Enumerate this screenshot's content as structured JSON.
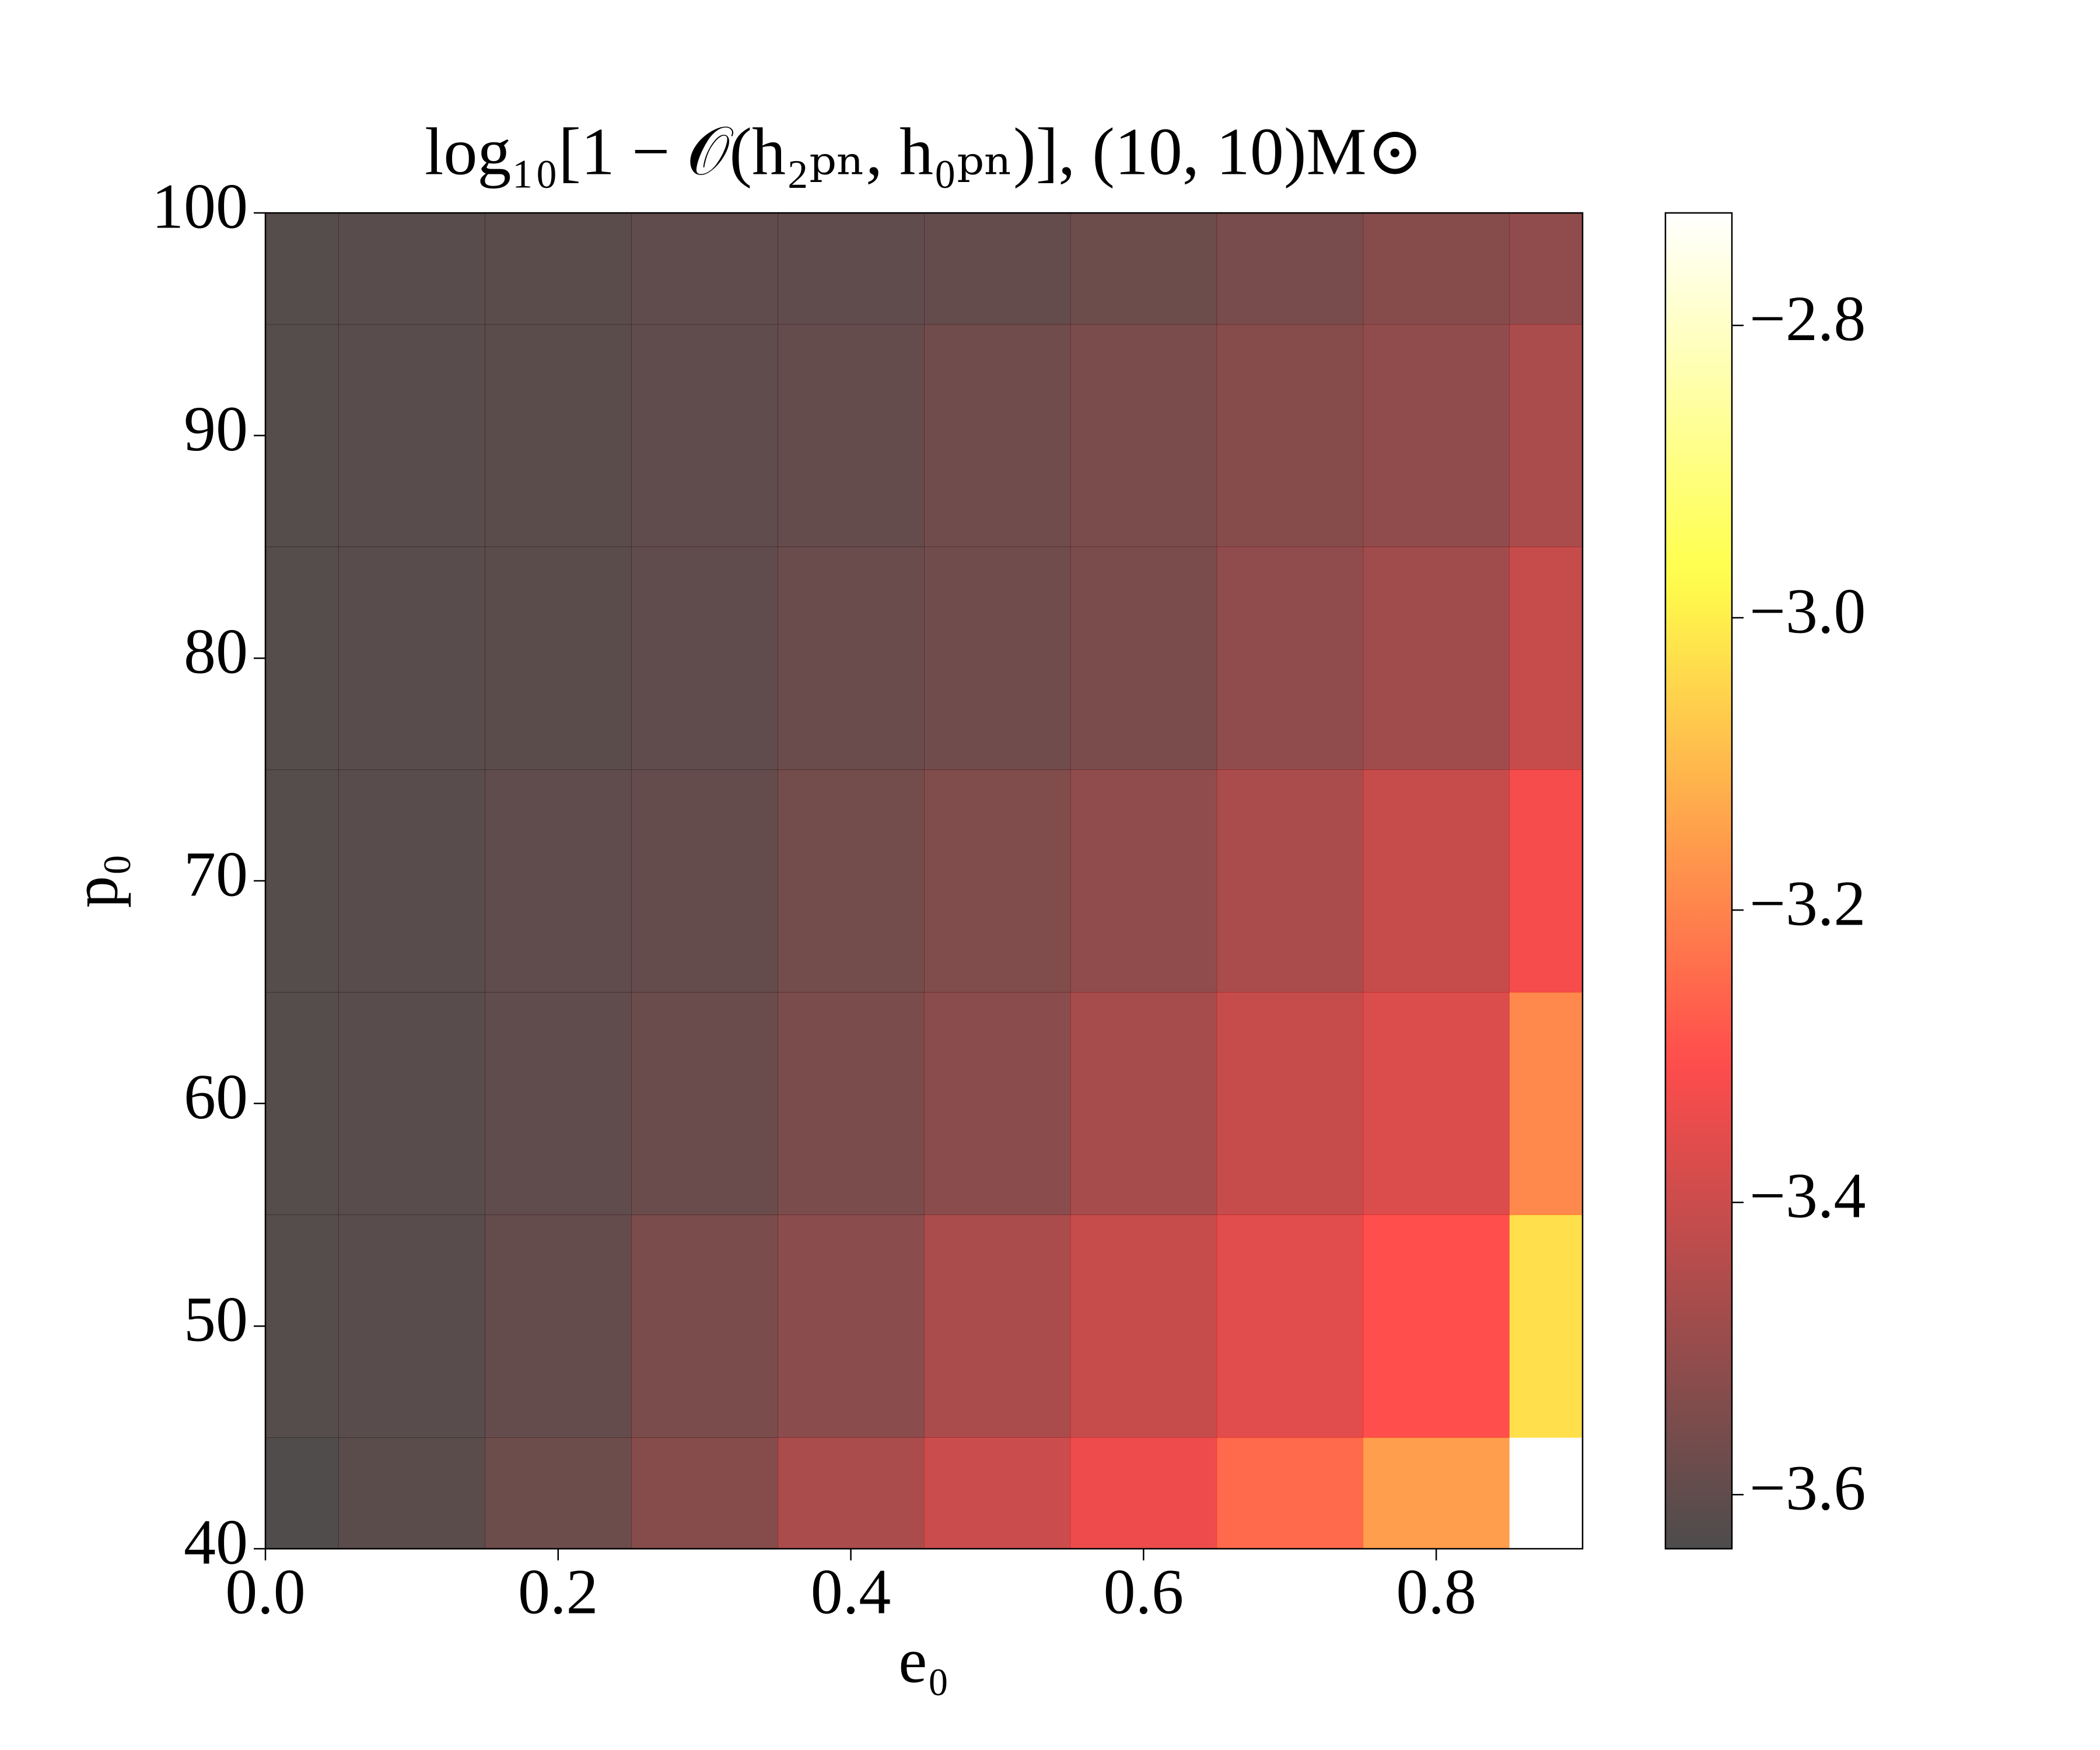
{
  "chart_data": {
    "type": "heatmap",
    "title": "log₁₀[1 − 𝒪(h₂ₚₙ, h₀ₚₙ)], (10, 10)M⊙",
    "xlabel": "e₀",
    "ylabel": "p₀",
    "x": [
      0,
      0.1,
      0.2,
      0.3,
      0.4,
      0.5,
      0.6,
      0.7,
      0.8,
      0.9
    ],
    "y": [
      40,
      50,
      60,
      70,
      80,
      90,
      100
    ],
    "z": [
      [
        -3.63,
        -3.61,
        -3.575,
        -3.53,
        -3.46,
        -3.4,
        -3.335,
        -3.25,
        -3.15,
        -2.723
      ],
      [
        -3.62,
        -3.615,
        -3.59,
        -3.55,
        -3.52,
        -3.46,
        -3.41,
        -3.36,
        -3.3,
        -3.03
      ],
      [
        -3.62,
        -3.615,
        -3.6,
        -3.58,
        -3.55,
        -3.52,
        -3.47,
        -3.41,
        -3.37,
        -3.19
      ],
      [
        -3.62,
        -3.615,
        -3.6,
        -3.59,
        -3.565,
        -3.54,
        -3.51,
        -3.46,
        -3.41,
        -3.32
      ],
      [
        -3.62,
        -3.615,
        -3.61,
        -3.6,
        -3.58,
        -3.57,
        -3.55,
        -3.51,
        -3.48,
        -3.41
      ],
      [
        -3.62,
        -3.615,
        -3.61,
        -3.6,
        -3.59,
        -3.57,
        -3.55,
        -3.53,
        -3.51,
        -3.46
      ],
      [
        -3.62,
        -3.615,
        -3.61,
        -3.6,
        -3.6,
        -3.59,
        -3.575,
        -3.555,
        -3.53,
        -3.51
      ]
    ],
    "xlim": [
      0,
      0.9
    ],
    "ylim": [
      40,
      100
    ],
    "xticks": [
      {
        "value": 0,
        "label": "0.0"
      },
      0.2,
      0.4,
      0.6,
      0.8
    ],
    "yticks": [
      40,
      50,
      60,
      70,
      80,
      90,
      100
    ],
    "colormap": "hot",
    "alpha": 0.7,
    "clim": [
      -3.637,
      -2.723
    ],
    "cticks": [
      {
        "value": -3.6,
        "label": "−3.6"
      },
      {
        "value": -3.4,
        "label": "−3.4"
      },
      {
        "value": -3.2,
        "label": "−3.2"
      },
      {
        "value": -3.0,
        "label": "−3.0"
      },
      {
        "value": -2.8,
        "label": "−2.8"
      }
    ]
  }
}
